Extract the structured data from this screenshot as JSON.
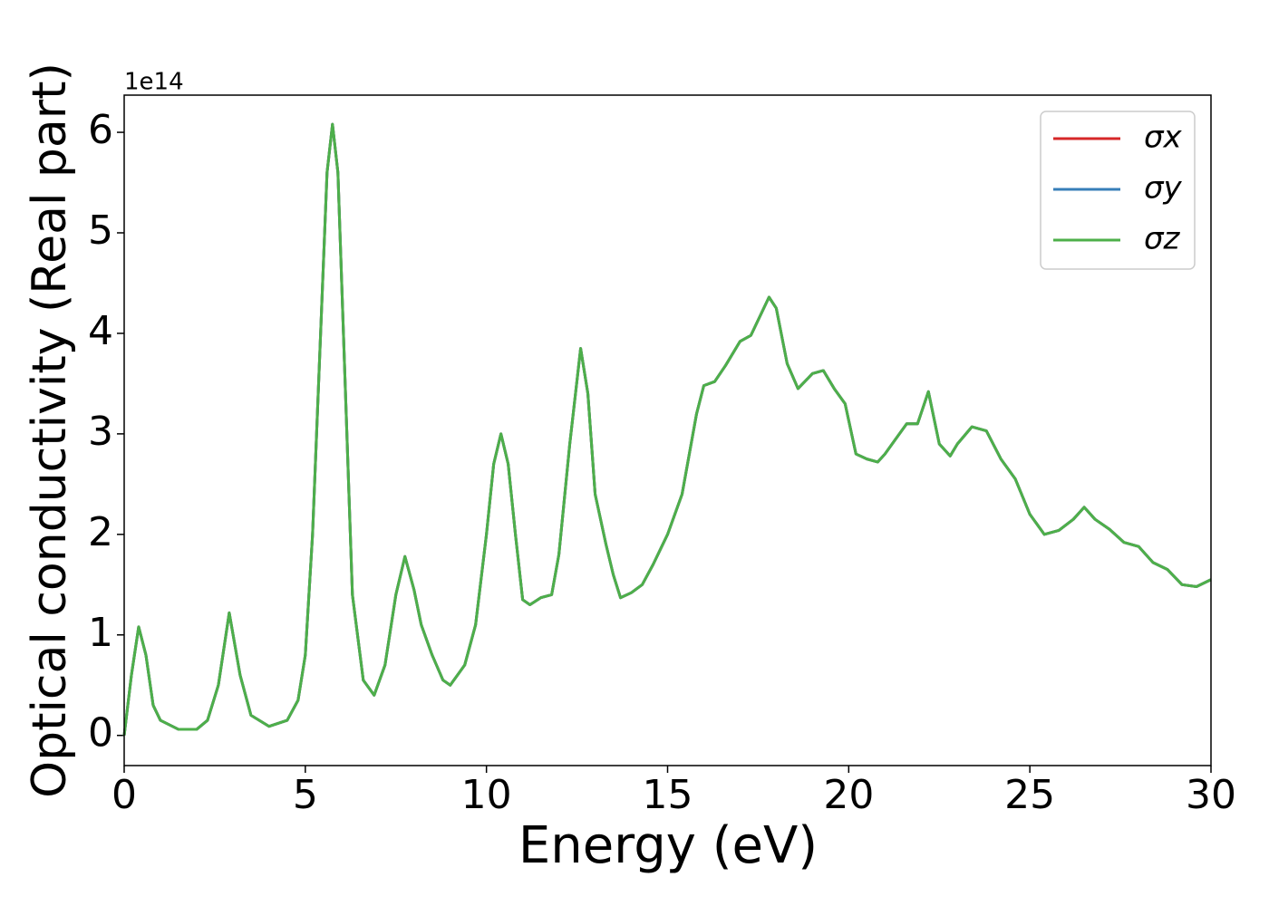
{
  "chart_data": {
    "type": "line",
    "xlabel": "Energy (eV)",
    "ylabel": "Optical conductivity (Real part)",
    "y_offset_label": "1e14",
    "x": [
      0,
      0.2,
      0.4,
      0.6,
      0.8,
      1.0,
      1.5,
      2.0,
      2.3,
      2.6,
      2.9,
      3.2,
      3.5,
      4.0,
      4.5,
      4.8,
      5.0,
      5.2,
      5.4,
      5.6,
      5.75,
      5.9,
      6.1,
      6.3,
      6.6,
      6.9,
      7.2,
      7.5,
      7.75,
      8.0,
      8.2,
      8.5,
      8.8,
      9.0,
      9.4,
      9.7,
      10.0,
      10.2,
      10.4,
      10.6,
      10.8,
      11.0,
      11.2,
      11.5,
      11.8,
      12.0,
      12.3,
      12.6,
      12.8,
      13.0,
      13.3,
      13.5,
      13.7,
      14.0,
      14.3,
      14.6,
      15.0,
      15.4,
      15.8,
      16.0,
      16.3,
      16.6,
      17.0,
      17.3,
      17.8,
      18.0,
      18.3,
      18.6,
      19.0,
      19.3,
      19.6,
      19.9,
      20.2,
      20.5,
      20.8,
      21.0,
      21.3,
      21.6,
      21.9,
      22.2,
      22.5,
      22.8,
      23.0,
      23.4,
      23.8,
      24.2,
      24.6,
      25.0,
      25.4,
      25.8,
      26.2,
      26.5,
      26.8,
      27.2,
      27.6,
      28.0,
      28.4,
      28.8,
      29.2,
      29.6,
      30.0
    ],
    "series": [
      {
        "name": "σx",
        "color": "#d62728",
        "values": [
          0,
          0.6,
          1.08,
          0.8,
          0.3,
          0.15,
          0.06,
          0.06,
          0.15,
          0.5,
          1.22,
          0.6,
          0.2,
          0.09,
          0.15,
          0.35,
          0.8,
          2.0,
          3.8,
          5.6,
          6.08,
          5.6,
          3.5,
          1.4,
          0.55,
          0.4,
          0.7,
          1.4,
          1.78,
          1.45,
          1.1,
          0.8,
          0.55,
          0.5,
          0.7,
          1.1,
          2.0,
          2.7,
          3.0,
          2.7,
          2.0,
          1.35,
          1.3,
          1.37,
          1.4,
          1.8,
          2.9,
          3.85,
          3.4,
          2.4,
          1.9,
          1.6,
          1.37,
          1.42,
          1.5,
          1.7,
          2.0,
          2.4,
          3.2,
          3.48,
          3.52,
          3.68,
          3.92,
          3.98,
          4.36,
          4.25,
          3.7,
          3.45,
          3.6,
          3.63,
          3.45,
          3.3,
          2.8,
          2.75,
          2.72,
          2.8,
          2.95,
          3.1,
          3.1,
          3.42,
          2.9,
          2.78,
          2.9,
          3.07,
          3.03,
          2.75,
          2.55,
          2.2,
          2.0,
          2.04,
          2.15,
          2.27,
          2.15,
          2.05,
          1.92,
          1.88,
          1.72,
          1.65,
          1.5,
          1.48,
          1.55
        ]
      },
      {
        "name": "σy",
        "color": "#377eb8",
        "values": [
          0,
          0.6,
          1.08,
          0.8,
          0.3,
          0.15,
          0.06,
          0.06,
          0.15,
          0.5,
          1.22,
          0.6,
          0.2,
          0.09,
          0.15,
          0.35,
          0.8,
          2.0,
          3.8,
          5.6,
          6.08,
          5.6,
          3.5,
          1.4,
          0.55,
          0.4,
          0.7,
          1.4,
          1.78,
          1.45,
          1.1,
          0.8,
          0.55,
          0.5,
          0.7,
          1.1,
          2.0,
          2.7,
          3.0,
          2.7,
          2.0,
          1.35,
          1.3,
          1.37,
          1.4,
          1.8,
          2.9,
          3.85,
          3.4,
          2.4,
          1.9,
          1.6,
          1.37,
          1.42,
          1.5,
          1.7,
          2.0,
          2.4,
          3.2,
          3.48,
          3.52,
          3.68,
          3.92,
          3.98,
          4.36,
          4.25,
          3.7,
          3.45,
          3.6,
          3.63,
          3.45,
          3.3,
          2.8,
          2.75,
          2.72,
          2.8,
          2.95,
          3.1,
          3.1,
          3.42,
          2.9,
          2.78,
          2.9,
          3.07,
          3.03,
          2.75,
          2.55,
          2.2,
          2.0,
          2.04,
          2.15,
          2.27,
          2.15,
          2.05,
          1.92,
          1.88,
          1.72,
          1.65,
          1.5,
          1.48,
          1.55
        ]
      },
      {
        "name": "σz",
        "color": "#4daf4a",
        "values": [
          0,
          0.6,
          1.08,
          0.8,
          0.3,
          0.15,
          0.06,
          0.06,
          0.15,
          0.5,
          1.22,
          0.6,
          0.2,
          0.09,
          0.15,
          0.35,
          0.8,
          2.0,
          3.8,
          5.6,
          6.08,
          5.6,
          3.5,
          1.4,
          0.55,
          0.4,
          0.7,
          1.4,
          1.78,
          1.45,
          1.1,
          0.8,
          0.55,
          0.5,
          0.7,
          1.1,
          2.0,
          2.7,
          3.0,
          2.7,
          2.0,
          1.35,
          1.3,
          1.37,
          1.4,
          1.8,
          2.9,
          3.85,
          3.4,
          2.4,
          1.9,
          1.6,
          1.37,
          1.42,
          1.5,
          1.7,
          2.0,
          2.4,
          3.2,
          3.48,
          3.52,
          3.68,
          3.92,
          3.98,
          4.36,
          4.25,
          3.7,
          3.45,
          3.6,
          3.63,
          3.45,
          3.3,
          2.8,
          2.75,
          2.72,
          2.8,
          2.95,
          3.1,
          3.1,
          3.42,
          2.9,
          2.78,
          2.9,
          3.07,
          3.03,
          2.75,
          2.55,
          2.2,
          2.0,
          2.04,
          2.15,
          2.27,
          2.15,
          2.05,
          1.92,
          1.88,
          1.72,
          1.65,
          1.5,
          1.48,
          1.55
        ]
      }
    ],
    "xlim": [
      0,
      30
    ],
    "xticks": [
      0,
      5,
      10,
      15,
      20,
      25,
      30
    ],
    "ylim": [
      -0.3,
      6.37
    ],
    "yticks": [
      0,
      1,
      2,
      3,
      4,
      5,
      6
    ],
    "grid": false,
    "legend": "upper right"
  }
}
